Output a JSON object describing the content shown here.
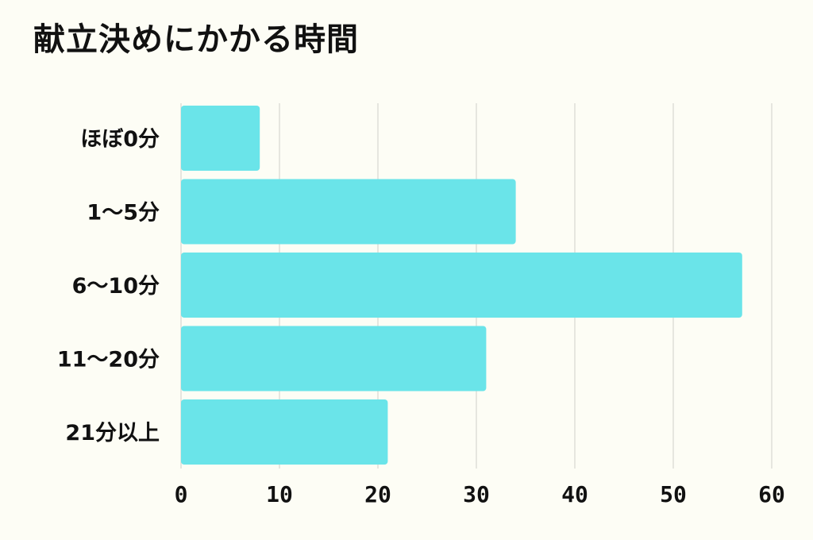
{
  "chart_data": {
    "type": "bar",
    "orientation": "horizontal",
    "title": "献立決めにかかる時間",
    "categories": [
      "ほぼ0分",
      "1〜5分",
      "6〜10分",
      "11〜20分",
      "21分以上"
    ],
    "values": [
      8,
      34,
      57,
      31,
      21
    ],
    "xlim": [
      0,
      60
    ],
    "xticks": [
      "0",
      "10",
      "20",
      "30",
      "40",
      "50",
      "60"
    ],
    "xlabel": "",
    "ylabel": "",
    "grid": "vertical",
    "legend": "none",
    "bar_color": "#6ae4e9",
    "grid_color": "#d8d8d0",
    "background_color": "#fdfdf5"
  }
}
